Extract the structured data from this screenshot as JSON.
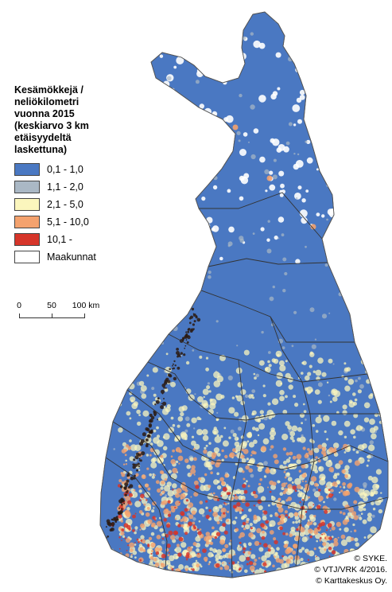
{
  "legend": {
    "title": "Kesämökkejä /\nneliökilometri\nvuonna 2015\n(keskiarvo 3 km\netäisyydeltä\nlaskettuna)",
    "items": [
      {
        "label": "0,1 - 1,0",
        "color": "#4a78c2"
      },
      {
        "label": "1,1 - 2,0",
        "color": "#aab8c5"
      },
      {
        "label": "2,1 - 5,0",
        "color": "#fbf6bd"
      },
      {
        "label": "5,1 - 10,0",
        "color": "#f4a26e"
      },
      {
        "label": "10,1 -",
        "color": "#d6352a"
      },
      {
        "label": "Maakunnat",
        "color": "#ffffff"
      }
    ]
  },
  "scale_bar": {
    "labels": [
      "0",
      "50",
      "100 km"
    ]
  },
  "credits": [
    "© SYKE.",
    "© VTJ/VRK 4/2016.",
    "© Karttakeskus Oy."
  ],
  "colors": {
    "background": "#ffffff",
    "region_border": "#333333",
    "coast_dark": "#2a1a12"
  }
}
